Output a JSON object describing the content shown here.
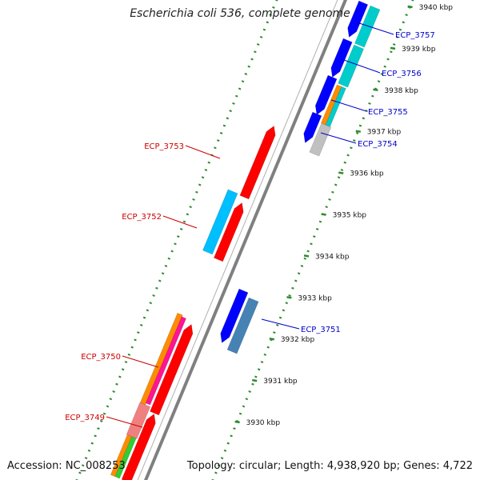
{
  "title": "Escherichia coli 536, complete genome",
  "footer": {
    "accession": "Accession: NC_008253",
    "summary": "Topology: circular; Length: 4,938,920 bp; Genes: 4,722"
  },
  "ticks": [
    {
      "kbp": 3930,
      "label": "3930 kbp"
    },
    {
      "kbp": 3931,
      "label": "3931 kbp"
    },
    {
      "kbp": 3932,
      "label": "3932 kbp"
    },
    {
      "kbp": 3933,
      "label": "3933 kbp"
    },
    {
      "kbp": 3934,
      "label": "3934 kbp"
    },
    {
      "kbp": 3935,
      "label": "3935 kbp"
    },
    {
      "kbp": 3936,
      "label": "3936 kbp"
    },
    {
      "kbp": 3937,
      "label": "3937 kbp"
    },
    {
      "kbp": 3938,
      "label": "3938 kbp"
    },
    {
      "kbp": 3939,
      "label": "3939 kbp"
    },
    {
      "kbp": 3940,
      "label": "3940 kbp"
    }
  ],
  "gene_labels": {
    "reverse": [
      "ECP_3749",
      "ECP_3750",
      "ECP_3752",
      "ECP_3753"
    ],
    "forward": [
      "ECP_3751",
      "ECP_3754",
      "ECP_3755",
      "ECP_3756",
      "ECP_3757"
    ]
  },
  "colors": {
    "backbone": "#808080",
    "tick_dots": "#2e8b2e",
    "reverse_label": "#cc0000",
    "forward_label": "#0000cc",
    "red": "#ff0000",
    "blue": "#0000ff",
    "cyan": "#00cccc",
    "skyblue": "#00bfff",
    "steelblue": "#4682b4",
    "orange": "#ff8c00",
    "magenta": "#ff1493",
    "pink": "#f08080",
    "green": "#32cd32",
    "gray": "#c0c0c0",
    "lavender": "#e6e6fa"
  }
}
